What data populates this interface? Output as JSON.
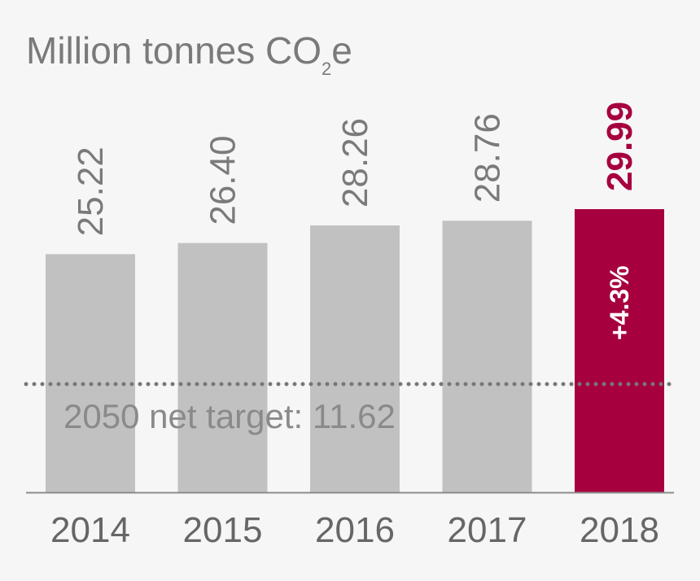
{
  "chart_data": {
    "type": "bar",
    "title_prefix": "Million tonnes CO",
    "title_subscript": "2",
    "title_suffix": "e",
    "categories": [
      "2014",
      "2015",
      "2016",
      "2017",
      "2018"
    ],
    "values": [
      25.22,
      26.4,
      28.26,
      28.76,
      29.99
    ],
    "value_labels": [
      "25.22",
      "26.40",
      "28.26",
      "28.76",
      "29.99"
    ],
    "highlight_index": 4,
    "highlight_annotation": "+4.3%",
    "reference_line": {
      "value": 11.62,
      "label": "2050 net target: 11.62",
      "style": "dotted"
    },
    "ylim": [
      0,
      29.99
    ],
    "bar_color": "#c1c1c1",
    "highlight_color": "#a6003f",
    "axis_color": "#8c8c8c",
    "grid": false
  }
}
